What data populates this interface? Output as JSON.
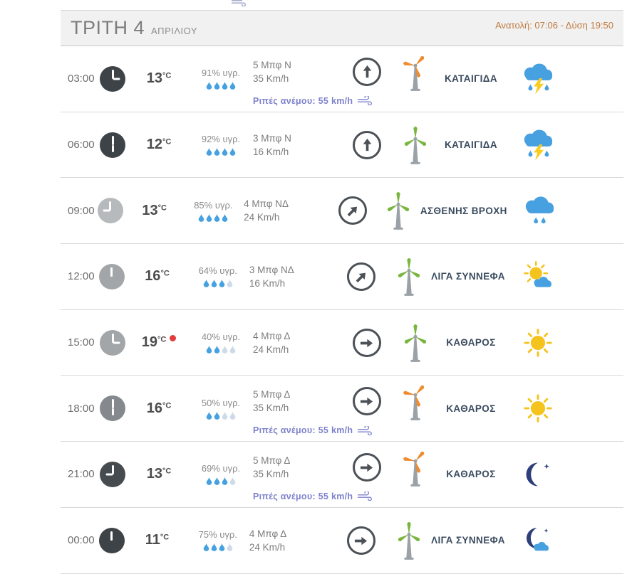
{
  "page": {
    "partial_icon": "wind-gust-icon-partial"
  },
  "day_header": {
    "day": "ΤΡΙΤΗ 4",
    "month": "ΑΠΡΙΛΙΟΥ",
    "sun_times": "Ανατολή: 07:06 - Δύση 19:50"
  },
  "colors": {
    "drop_filled": "#45a1df",
    "drop_empty": "#ccdbe7",
    "dir_arrow": "#4b5156",
    "turbine_green": "#79b63f",
    "turbine_orange": "#ee8c2f",
    "turbine_pole": "#9aa1a7",
    "gust_text": "#7e82cc",
    "sun": "#f5c31d",
    "cloud": "#47a0e0",
    "lightning": "#f7ce1f",
    "moon": "#2d3e78",
    "red_dot": "#e23b3b",
    "condition_text": "#3a4b5f",
    "suntimes_text": "#c07a3f"
  },
  "rows": [
    {
      "time": "03:00",
      "clock_color": "#3e4347",
      "hour": 3,
      "temp": "13",
      "temp_unit": "°C",
      "is_max": false,
      "humidity": "91% υγρ.",
      "drops_filled": 4,
      "drops_total": 4,
      "wind_beaufort": "5 Μπφ N",
      "wind_speed": "35 Km/h",
      "wind_dir_deg": 0,
      "turbine_color": "orange",
      "gusts": "Ριπές ανέμου: 55 km/h",
      "condition": "ΚΑΤΑΙΓΙΔΑ",
      "icon": "storm"
    },
    {
      "time": "06:00",
      "clock_color": "#3e4347",
      "hour": 6,
      "temp": "12",
      "temp_unit": "°C",
      "is_max": false,
      "humidity": "92% υγρ.",
      "drops_filled": 4,
      "drops_total": 4,
      "wind_beaufort": "3 Μπφ N",
      "wind_speed": "16 Km/h",
      "wind_dir_deg": 0,
      "turbine_color": "green",
      "gusts": "",
      "condition": "ΚΑΤΑΙΓΙΔΑ",
      "icon": "storm"
    },
    {
      "time": "09:00",
      "clock_color": "#b7babc",
      "hour": 9,
      "temp": "13",
      "temp_unit": "°C",
      "is_max": false,
      "humidity": "85% υγρ.",
      "drops_filled": 4,
      "drops_total": 4,
      "wind_beaufort": "4 Μπφ ΝΔ",
      "wind_speed": "24 Km/h",
      "wind_dir_deg": 45,
      "turbine_color": "green",
      "gusts": "",
      "condition": "ΑΣΘΕΝΗΣ ΒΡΟΧΗ",
      "icon": "rain"
    },
    {
      "time": "12:00",
      "clock_color": "#a3a6a8",
      "hour": 12,
      "temp": "16",
      "temp_unit": "°C",
      "is_max": false,
      "humidity": "64% υγρ.",
      "drops_filled": 3,
      "drops_total": 4,
      "wind_beaufort": "3 Μπφ ΝΔ",
      "wind_speed": "16 Km/h",
      "wind_dir_deg": 45,
      "turbine_color": "green",
      "gusts": "",
      "condition": "ΛΙΓΑ ΣΥΝΝΕΦΑ",
      "icon": "sun-cloud"
    },
    {
      "time": "15:00",
      "clock_color": "#a3a6a8",
      "hour": 15,
      "temp": "19",
      "temp_unit": "°C",
      "is_max": true,
      "humidity": "40% υγρ.",
      "drops_filled": 2,
      "drops_total": 4,
      "wind_beaufort": "4 Μπφ Δ",
      "wind_speed": "24 Km/h",
      "wind_dir_deg": 90,
      "turbine_color": "green",
      "gusts": "",
      "condition": "ΚΑΘΑΡΟΣ",
      "icon": "sun"
    },
    {
      "time": "18:00",
      "clock_color": "#85898d",
      "hour": 18,
      "temp": "16",
      "temp_unit": "°C",
      "is_max": false,
      "humidity": "50% υγρ.",
      "drops_filled": 2,
      "drops_total": 4,
      "wind_beaufort": "5 Μπφ Δ",
      "wind_speed": "35 Km/h",
      "wind_dir_deg": 90,
      "turbine_color": "orange",
      "gusts": "Ριπές ανέμου: 55 km/h",
      "condition": "ΚΑΘΑΡΟΣ",
      "icon": "sun"
    },
    {
      "time": "21:00",
      "clock_color": "#464b4f",
      "hour": 21,
      "temp": "13",
      "temp_unit": "°C",
      "is_max": false,
      "humidity": "69% υγρ.",
      "drops_filled": 3,
      "drops_total": 4,
      "wind_beaufort": "5 Μπφ Δ",
      "wind_speed": "35 Km/h",
      "wind_dir_deg": 90,
      "turbine_color": "orange",
      "gusts": "Ριπές ανέμου: 55 km/h",
      "condition": "ΚΑΘΑΡΟΣ",
      "icon": "moon"
    },
    {
      "time": "00:00",
      "clock_color": "#3e4347",
      "hour": 0,
      "temp": "11",
      "temp_unit": "°C",
      "is_max": false,
      "humidity": "75% υγρ.",
      "drops_filled": 3,
      "drops_total": 4,
      "wind_beaufort": "4 Μπφ Δ",
      "wind_speed": "24 Km/h",
      "wind_dir_deg": 90,
      "turbine_color": "green",
      "gusts": "",
      "condition": "ΛΙΓΑ ΣΥΝΝΕΦΑ",
      "icon": "moon-cloud"
    }
  ]
}
